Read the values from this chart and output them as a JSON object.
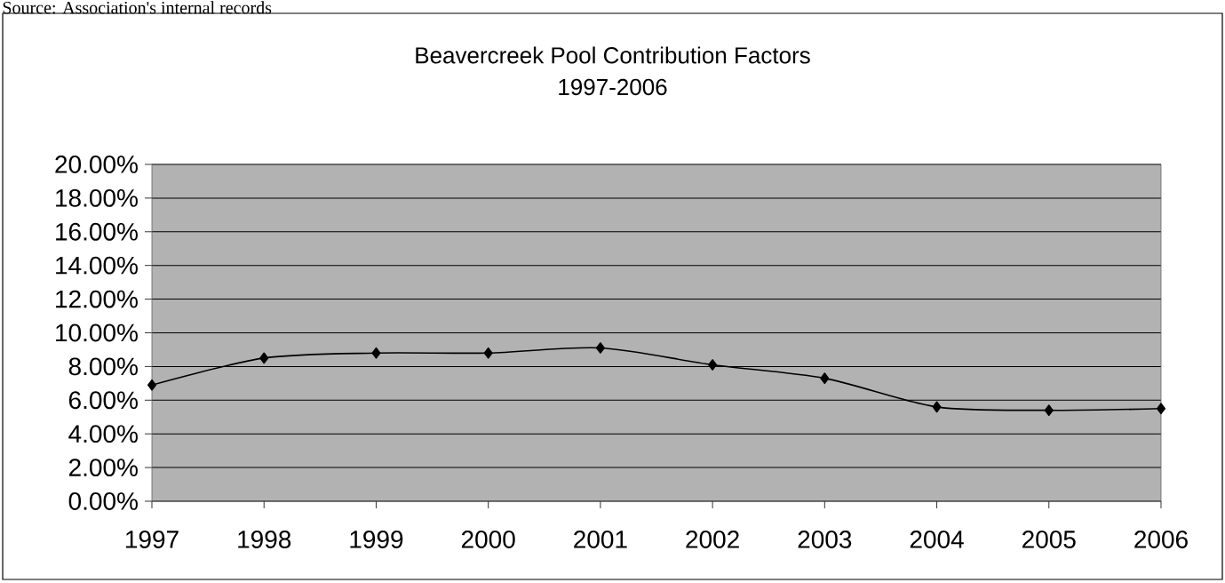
{
  "chart_data": {
    "type": "line",
    "title": "Beavercreek Pool Contribution Factors",
    "subtitle": "1997-2006",
    "annotations": [
      "Source: Association's internal records"
    ],
    "categories": [
      "1997",
      "1998",
      "1999",
      "2000",
      "2001",
      "2002",
      "2003",
      "2004",
      "2005",
      "2006"
    ],
    "series": [
      {
        "color": "#000000",
        "values": [
          6.9,
          8.5,
          8.8,
          8.8,
          9.1,
          8.1,
          7.3,
          5.6,
          5.4,
          5.5
        ]
      }
    ],
    "ylim": [
      0,
      20
    ],
    "yticks": [
      {
        "value": 0,
        "label": "0.00%"
      },
      {
        "value": 2,
        "label": "2.00%"
      },
      {
        "value": 4,
        "label": "4.00%"
      },
      {
        "value": 6,
        "label": "6.00%"
      },
      {
        "value": 8,
        "label": "8.00%"
      },
      {
        "value": 10,
        "label": "10.00%"
      },
      {
        "value": 12,
        "label": "12.00%"
      },
      {
        "value": 14,
        "label": "14.00%"
      },
      {
        "value": 16,
        "label": "16.00%"
      },
      {
        "value": 18,
        "label": "18.00%"
      },
      {
        "value": 20,
        "label": "20.00%"
      }
    ],
    "grid": "y",
    "marker": "diamond",
    "line_style": "solid"
  }
}
